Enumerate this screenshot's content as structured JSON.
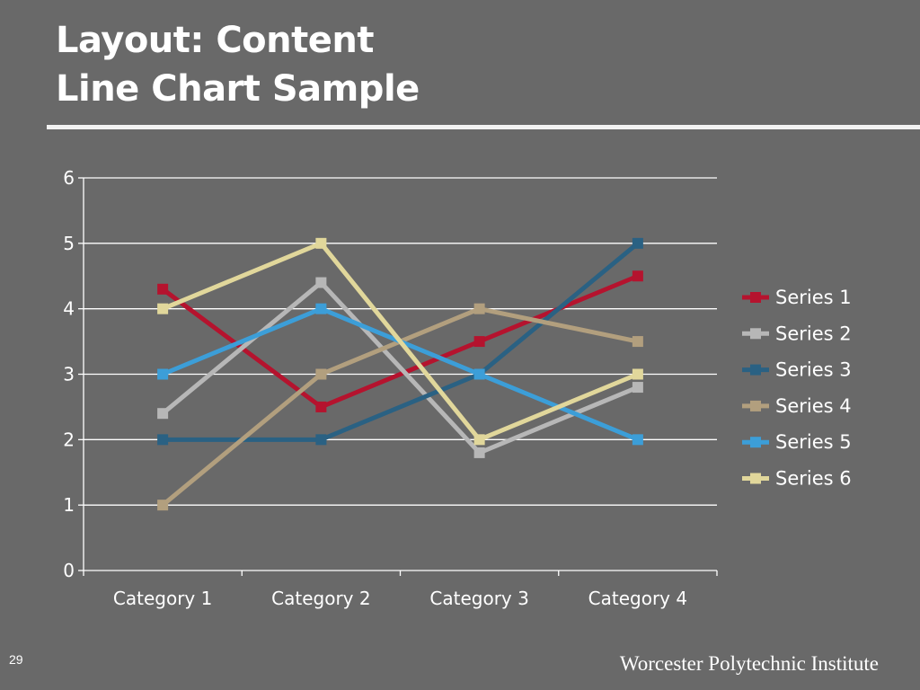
{
  "slide": {
    "title_line1": "Layout: Content",
    "title_line2": "Line Chart Sample",
    "number": "29",
    "footer": "Worcester Polytechnic Institute"
  },
  "chart_data": {
    "type": "line",
    "categories": [
      "Category 1",
      "Category 2",
      "Category 3",
      "Category 4"
    ],
    "ylim": [
      0,
      6
    ],
    "yticks": [
      0,
      1,
      2,
      3,
      4,
      5,
      6
    ],
    "grid": true,
    "legend": "right",
    "series": [
      {
        "name": "Series 1",
        "color": "#b5132e",
        "values": [
          4.3,
          2.5,
          3.5,
          4.5
        ]
      },
      {
        "name": "Series 2",
        "color": "#b7b7b7",
        "values": [
          2.4,
          4.4,
          1.8,
          2.8
        ]
      },
      {
        "name": "Series 3",
        "color": "#2a6183",
        "values": [
          2,
          2,
          3,
          5
        ]
      },
      {
        "name": "Series 4",
        "color": "#b29f7e",
        "values": [
          1,
          3,
          4,
          3.5
        ]
      },
      {
        "name": "Series 5",
        "color": "#3c9ed8",
        "values": [
          3,
          4,
          3,
          2
        ]
      },
      {
        "name": "Series 6",
        "color": "#e1d79b",
        "values": [
          4,
          5,
          2,
          3
        ]
      }
    ]
  }
}
